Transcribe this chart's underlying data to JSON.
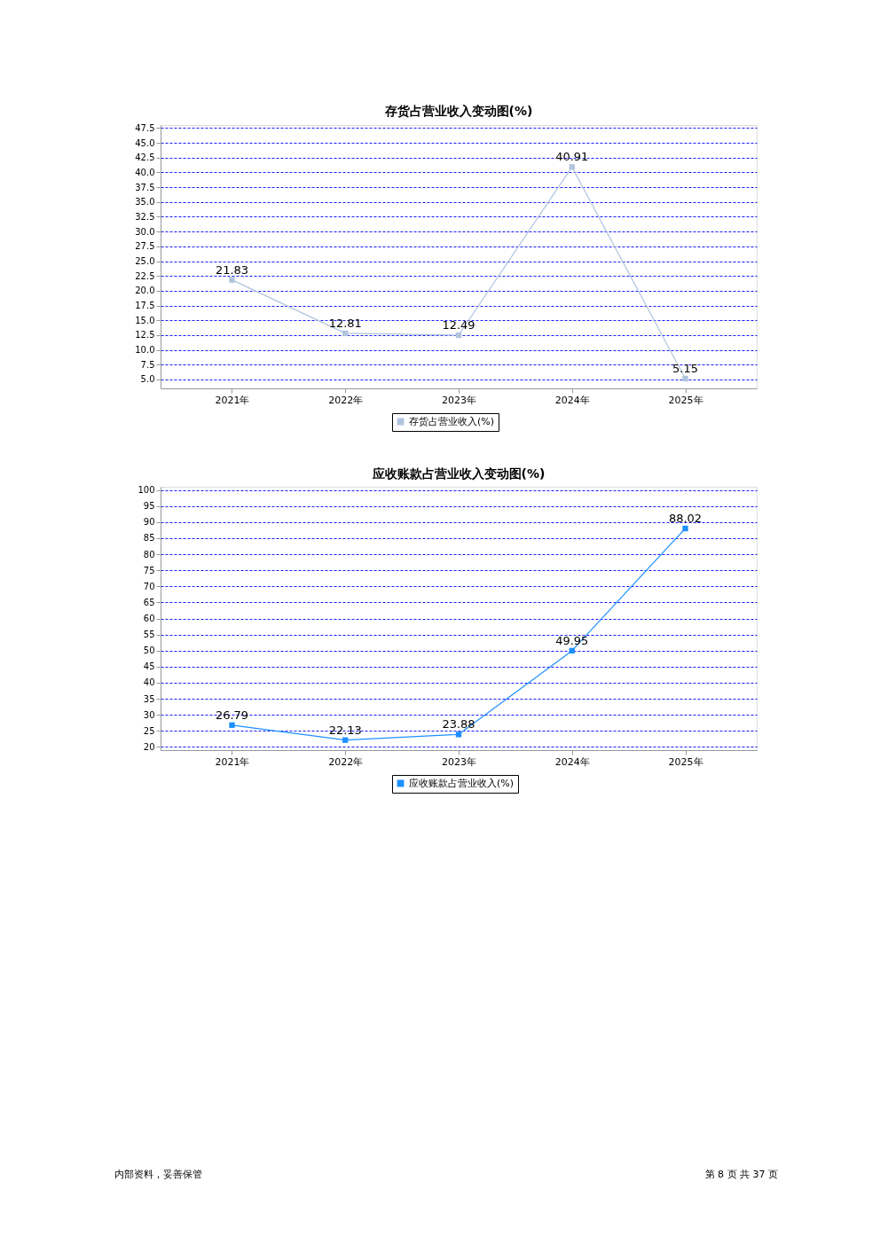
{
  "chart_data": [
    {
      "type": "line",
      "title": "存货占营业收入变动图(%)",
      "categories": [
        "2021年",
        "2022年",
        "2023年",
        "2024年",
        "2025年"
      ],
      "series": [
        {
          "name": "存货占营业收入(%)",
          "color": "#b0c4de",
          "values": [
            21.83,
            12.81,
            12.49,
            40.91,
            5.15
          ]
        }
      ],
      "ylim": [
        3.5,
        48
      ],
      "yticks": [
        {
          "value": 5,
          "label": "5.0"
        },
        7.5,
        {
          "value": 10,
          "label": "10.0"
        },
        12.5,
        {
          "value": 15,
          "label": "15.0"
        },
        17.5,
        {
          "value": 20,
          "label": "20.0"
        },
        22.5,
        {
          "value": 25,
          "label": "25.0"
        },
        27.5,
        {
          "value": 30,
          "label": "30.0"
        },
        32.5,
        {
          "value": 35,
          "label": "35.0"
        },
        37.5,
        {
          "value": 40,
          "label": "40.0"
        },
        42.5,
        {
          "value": 45,
          "label": "45.0"
        },
        47.5
      ],
      "grid": "y",
      "legend": "bottom",
      "marker": "square",
      "data_labels": true
    },
    {
      "type": "line",
      "title": "应收账款占营业收入变动图(%)",
      "categories": [
        "2021年",
        "2022年",
        "2023年",
        "2024年",
        "2025年"
      ],
      "series": [
        {
          "name": "应收账款占营业收入(%)",
          "color": "#1e90ff",
          "values": [
            26.79,
            22.13,
            23.88,
            49.95,
            88.02
          ]
        }
      ],
      "ylim": [
        19,
        101
      ],
      "yticks": [
        20,
        25,
        30,
        35,
        40,
        45,
        50,
        55,
        60,
        65,
        70,
        75,
        80,
        85,
        90,
        95,
        100
      ],
      "grid": "y",
      "legend": "bottom",
      "marker": "square",
      "data_labels": true,
      "annotations": [
        "内部资料，妥善保管",
        "第 8 页  共 37 页"
      ]
    }
  ]
}
